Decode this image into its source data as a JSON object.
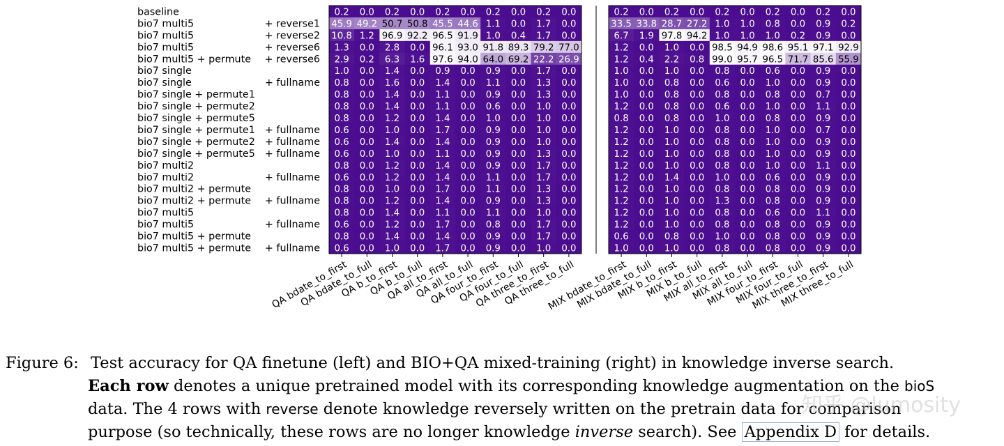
{
  "chart_data": {
    "type": "heatmap",
    "rows": [
      {
        "left": "baseline",
        "right": ""
      },
      {
        "left": "bio7 multi5",
        "right": "+ reverse1"
      },
      {
        "left": "bio7 multi5",
        "right": "+ reverse2"
      },
      {
        "left": "bio7 multi5",
        "right": "+ reverse6"
      },
      {
        "left": "bio7 multi5 + permute",
        "right": "+ reverse6"
      },
      {
        "left": "bio7 single",
        "right": ""
      },
      {
        "left": "bio7 single",
        "right": "+ fullname"
      },
      {
        "left": "bio7 single + permute1",
        "right": ""
      },
      {
        "left": "bio7 single + permute2",
        "right": ""
      },
      {
        "left": "bio7 single + permute5",
        "right": ""
      },
      {
        "left": "bio7 single + permute1",
        "right": "+ fullname"
      },
      {
        "left": "bio7 single + permute2",
        "right": "+ fullname"
      },
      {
        "left": "bio7 single + permute5",
        "right": "+ fullname"
      },
      {
        "left": "bio7 multi2",
        "right": ""
      },
      {
        "left": "bio7 multi2",
        "right": "+ fullname"
      },
      {
        "left": "bio7 multi2 + permute",
        "right": ""
      },
      {
        "left": "bio7 multi2 + permute",
        "right": "+ fullname"
      },
      {
        "left": "bio7 multi5",
        "right": ""
      },
      {
        "left": "bio7 multi5",
        "right": "+ fullname"
      },
      {
        "left": "bio7 multi5 + permute",
        "right": ""
      },
      {
        "left": "bio7 multi5 + permute",
        "right": "+ fullname"
      }
    ],
    "left_panel": {
      "columns": [
        "QA bdate_to_first",
        "QA bdate_to_full",
        "QA b_to_first",
        "QA b_to_full",
        "QA all_to_first",
        "QA all_to_full",
        "QA four_to_first",
        "QA four_to_full",
        "QA three_to_first",
        "QA three_to_full"
      ],
      "values": [
        [
          0.2,
          0.0,
          0.2,
          0.0,
          0.2,
          0.0,
          0.2,
          0.0,
          0.2,
          0.0
        ],
        [
          45.9,
          49.2,
          50.7,
          50.8,
          45.5,
          44.6,
          1.1,
          0.0,
          1.7,
          0.0
        ],
        [
          10.8,
          1.2,
          96.9,
          92.2,
          96.5,
          91.9,
          1.0,
          0.4,
          1.7,
          0.0
        ],
        [
          1.3,
          0.0,
          2.8,
          0.0,
          96.1,
          93.0,
          91.8,
          89.3,
          79.2,
          77.0
        ],
        [
          2.9,
          0.2,
          6.3,
          1.6,
          97.6,
          94.0,
          64.0,
          69.2,
          22.2,
          26.9
        ],
        [
          1.0,
          0.0,
          1.4,
          0.0,
          0.9,
          0.0,
          0.9,
          0.0,
          1.7,
          0.0
        ],
        [
          0.8,
          0.0,
          1.6,
          0.0,
          1.4,
          0.0,
          1.1,
          0.0,
          1.3,
          0.0
        ],
        [
          0.8,
          0.0,
          1.4,
          0.0,
          1.1,
          0.0,
          0.9,
          0.0,
          1.3,
          0.0
        ],
        [
          0.8,
          0.0,
          1.4,
          0.0,
          1.1,
          0.0,
          0.6,
          0.0,
          1.0,
          0.0
        ],
        [
          0.8,
          0.0,
          1.2,
          0.0,
          1.4,
          0.0,
          1.0,
          0.0,
          1.0,
          0.0
        ],
        [
          0.6,
          0.0,
          1.0,
          0.0,
          1.7,
          0.0,
          0.9,
          0.0,
          1.0,
          0.0
        ],
        [
          0.6,
          0.0,
          1.4,
          0.0,
          1.4,
          0.0,
          0.9,
          0.0,
          1.0,
          0.0
        ],
        [
          0.6,
          0.0,
          1.0,
          0.0,
          1.1,
          0.0,
          0.9,
          0.0,
          1.3,
          0.0
        ],
        [
          0.8,
          0.0,
          1.2,
          0.0,
          1.4,
          0.0,
          0.9,
          0.0,
          1.7,
          0.0
        ],
        [
          0.6,
          0.0,
          1.2,
          0.0,
          1.4,
          0.0,
          1.1,
          0.0,
          1.7,
          0.0
        ],
        [
          0.8,
          0.0,
          1.0,
          0.0,
          1.7,
          0.0,
          1.1,
          0.0,
          1.3,
          0.0
        ],
        [
          0.8,
          0.0,
          1.2,
          0.0,
          1.4,
          0.0,
          0.9,
          0.0,
          1.3,
          0.0
        ],
        [
          0.8,
          0.0,
          1.4,
          0.0,
          1.1,
          0.0,
          1.1,
          0.0,
          1.0,
          0.0
        ],
        [
          0.6,
          0.0,
          1.2,
          0.0,
          1.7,
          0.0,
          0.8,
          0.0,
          1.7,
          0.0
        ],
        [
          0.8,
          0.0,
          1.4,
          0.0,
          1.4,
          0.0,
          0.9,
          0.0,
          1.7,
          0.0
        ],
        [
          0.6,
          0.0,
          1.0,
          0.0,
          1.7,
          0.0,
          0.9,
          0.0,
          1.0,
          0.0
        ]
      ]
    },
    "right_panel": {
      "columns": [
        "MIX bdate_to_first",
        "MIX bdate_to_full",
        "MIX b_to_first",
        "MIX b_to_full",
        "MIX all_to_first",
        "MIX all_to_full",
        "MIX four_to_first",
        "MIX four_to_full",
        "MIX three_to_first",
        "MIX three_to_full"
      ],
      "values": [
        [
          0.2,
          0.0,
          0.2,
          0.0,
          0.2,
          0.0,
          0.2,
          0.0,
          0.2,
          0.0
        ],
        [
          33.5,
          33.8,
          28.7,
          27.2,
          1.0,
          1.0,
          0.8,
          0.0,
          0.9,
          0.2
        ],
        [
          6.7,
          1.9,
          97.8,
          94.2,
          1.0,
          1.0,
          1.0,
          0.2,
          0.9,
          0.0
        ],
        [
          1.2,
          0.0,
          1.0,
          0.0,
          98.5,
          94.9,
          98.6,
          95.1,
          97.1,
          92.9
        ],
        [
          1.2,
          0.4,
          2.2,
          0.8,
          99.0,
          95.7,
          96.5,
          71.7,
          85.6,
          55.9
        ],
        [
          1.0,
          0.0,
          1.0,
          0.0,
          0.8,
          0.0,
          0.6,
          0.0,
          0.9,
          0.0
        ],
        [
          1.0,
          0.0,
          0.8,
          0.0,
          0.6,
          0.0,
          1.0,
          0.0,
          0.9,
          0.0
        ],
        [
          1.0,
          0.0,
          0.8,
          0.0,
          0.8,
          0.0,
          0.8,
          0.0,
          0.7,
          0.0
        ],
        [
          1.2,
          0.0,
          0.8,
          0.0,
          0.6,
          0.0,
          1.0,
          0.0,
          1.1,
          0.0
        ],
        [
          0.8,
          0.0,
          0.8,
          0.0,
          1.0,
          0.0,
          0.8,
          0.0,
          0.9,
          0.0
        ],
        [
          1.2,
          0.0,
          1.0,
          0.0,
          0.8,
          0.0,
          1.0,
          0.0,
          0.7,
          0.0
        ],
        [
          1.2,
          0.0,
          1.0,
          0.0,
          0.8,
          0.0,
          1.0,
          0.0,
          0.9,
          0.0
        ],
        [
          1.2,
          0.0,
          1.0,
          0.0,
          0.8,
          0.0,
          1.0,
          0.0,
          0.9,
          0.0
        ],
        [
          1.2,
          0.0,
          1.0,
          0.0,
          0.8,
          0.0,
          1.0,
          0.0,
          1.1,
          0.0
        ],
        [
          1.2,
          0.0,
          1.4,
          0.0,
          1.0,
          0.0,
          0.6,
          0.0,
          0.9,
          0.0
        ],
        [
          1.2,
          0.0,
          1.0,
          0.0,
          0.8,
          0.0,
          0.8,
          0.0,
          0.9,
          0.0
        ],
        [
          1.2,
          0.0,
          1.0,
          0.0,
          1.3,
          0.0,
          0.8,
          0.0,
          0.9,
          0.0
        ],
        [
          1.2,
          0.0,
          1.0,
          0.0,
          0.8,
          0.0,
          0.6,
          0.0,
          1.1,
          0.0
        ],
        [
          1.2,
          0.0,
          1.0,
          0.0,
          0.8,
          0.0,
          0.8,
          0.0,
          0.9,
          0.0
        ],
        [
          0.6,
          0.0,
          0.8,
          0.0,
          1.0,
          0.0,
          0.8,
          0.0,
          0.9,
          0.0
        ],
        [
          1.0,
          0.0,
          1.0,
          0.0,
          0.8,
          0.0,
          0.8,
          0.0,
          0.9,
          0.0
        ]
      ]
    },
    "value_range": [
      0,
      100
    ],
    "colors": {
      "low": "#4b0d8f",
      "high": "#ffffff",
      "low_text": "#ffffff",
      "high_text": "#000000"
    }
  },
  "caption": {
    "label": "Figure 6:",
    "line1": "Test accuracy for QA finetune (left) and BIO+QA mixed-training (right) in knowledge inverse search.",
    "line2_bold": "Each row",
    "line2_rest": " denotes a unique pretrained model with its corresponding knowledge augmentation on the ",
    "line2_code": "bioS",
    "line3_pre": "data.  The 4 rows with ",
    "line3_code": "reverse",
    "line3_post": " denote knowledge reversely written on the pretrain data for comparison",
    "line4_pre": "purpose (so technically, these rows are no longer knowledge ",
    "line4_ital": "inverse",
    "line4_post": " search). See ",
    "line4_link": "Appendix D",
    "line4_end": " for details."
  },
  "watermark": "知乎 @lumosity"
}
